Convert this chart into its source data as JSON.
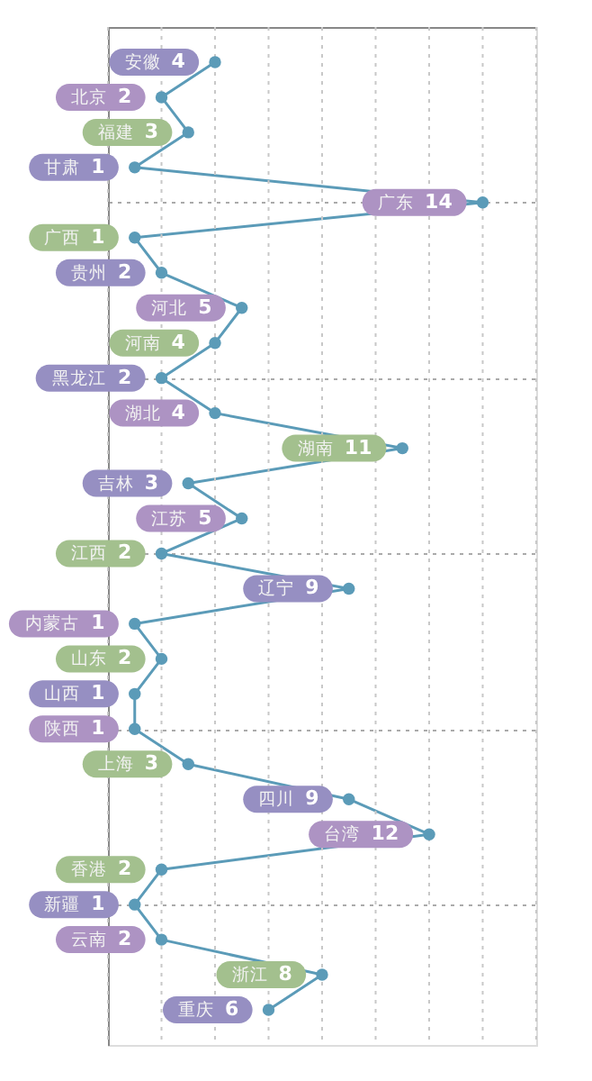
{
  "chart_data": {
    "type": "line",
    "orientation": "horizontal",
    "categories": [
      "安徽",
      "北京",
      "福建",
      "甘肃",
      "广东",
      "广西",
      "贵州",
      "河北",
      "河南",
      "黑龙江",
      "湖北",
      "湖南",
      "吉林",
      "江苏",
      "江西",
      "辽宁",
      "内蒙古",
      "山东",
      "山西",
      "陕西",
      "上海",
      "四川",
      "台湾",
      "香港",
      "新疆",
      "云南",
      "浙江",
      "重庆"
    ],
    "series": [
      {
        "color": "#5b9bb8",
        "values": [
          4,
          2,
          3,
          1,
          14,
          1,
          2,
          5,
          4,
          2,
          4,
          11,
          3,
          5,
          2,
          9,
          1,
          2,
          1,
          1,
          3,
          9,
          12,
          2,
          1,
          2,
          8,
          6
        ],
        "colors": [
          "#968fc2",
          "#ad93c3",
          "#a3c08e",
          "#968fc2",
          "#ad93c3",
          "#a3c08e",
          "#968fc2",
          "#ad93c3",
          "#a3c08e",
          "#968fc2",
          "#ad93c3",
          "#a3c08e",
          "#968fc2",
          "#ad93c3",
          "#a3c08e",
          "#968fc2",
          "#ad93c3",
          "#a3c08e",
          "#968fc2",
          "#ad93c3",
          "#a3c08e",
          "#968fc2",
          "#ad93c3",
          "#a3c08e",
          "#968fc2",
          "#ad93c3",
          "#a3c08e",
          "#968fc2"
        ]
      }
    ],
    "data_labels": true,
    "marker": "circle",
    "line_style": "solid",
    "grid": true,
    "tick_labels": false,
    "xlim": [
      0,
      16
    ],
    "xticks": [
      {
        "value": 0,
        "label": null
      },
      {
        "value": 2,
        "label": null
      },
      {
        "value": 4,
        "label": null
      },
      {
        "value": 6,
        "label": null
      },
      {
        "value": 8,
        "label": null
      },
      {
        "value": 10,
        "label": null
      },
      {
        "value": 12,
        "label": null
      },
      {
        "value": 14,
        "label": null
      },
      {
        "value": 16,
        "label": null
      }
    ]
  }
}
